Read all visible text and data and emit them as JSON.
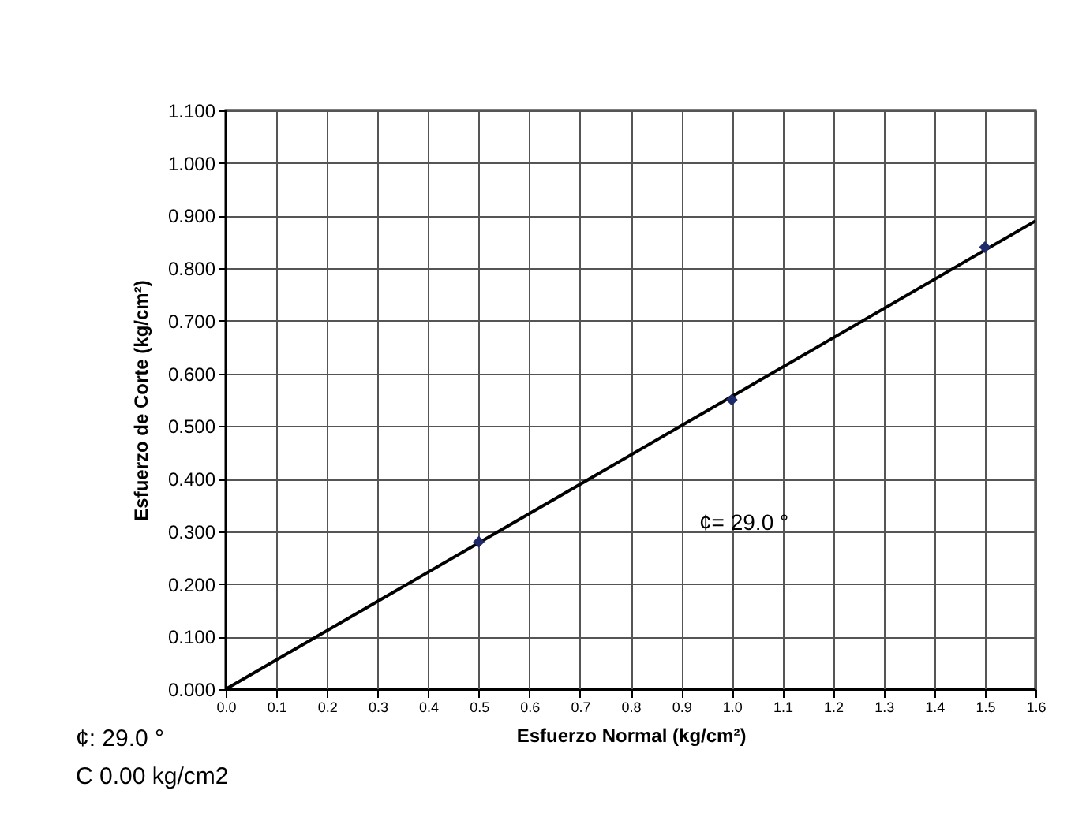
{
  "chart_data": {
    "type": "scatter",
    "xlabel": "Esfuerzo Normal (kg/cm²)",
    "ylabel": "Esfuerzo de Corte (kg/cm²)",
    "series": [
      {
        "color": "#1f2a6b",
        "marker": "diamond",
        "x": [
          0.5,
          1.0,
          1.5
        ],
        "values": [
          0.28,
          0.55,
          0.84
        ]
      },
      {
        "type": "line",
        "color": "#000000",
        "marker": "none",
        "line_style": "solid",
        "x": [
          0.0,
          1.6
        ],
        "values": [
          0.0,
          0.89
        ]
      }
    ],
    "xlim": [
      0,
      1.6
    ],
    "xticks": [
      {
        "value": 0,
        "label": "0.0"
      },
      0.1,
      0.2,
      0.3,
      0.4,
      0.5,
      0.6,
      0.7,
      0.8,
      0.9,
      {
        "value": 1,
        "label": "1.0"
      },
      1.1,
      1.2,
      1.3,
      1.4,
      1.5,
      1.6
    ],
    "ylim": [
      0,
      1.1
    ],
    "yticks": [
      {
        "value": 0,
        "label": "0.000"
      },
      {
        "value": 0.1,
        "label": "0.100"
      },
      {
        "value": 0.2,
        "label": "0.200"
      },
      {
        "value": 0.3,
        "label": "0.300"
      },
      {
        "value": 0.4,
        "label": "0.400"
      },
      {
        "value": 0.5,
        "label": "0.500"
      },
      {
        "value": 0.6,
        "label": "0.600"
      },
      {
        "value": 0.7,
        "label": "0.700"
      },
      {
        "value": 0.8,
        "label": "0.800"
      },
      {
        "value": 0.9,
        "label": "0.900"
      },
      {
        "value": 1.0,
        "label": "1.000"
      },
      {
        "value": 1.1,
        "label": "1.100"
      }
    ],
    "grid": true,
    "annotations": [
      "¢= 29.0  °",
      "¢:  29.0  °",
      "C  0.00  kg/cm2"
    ]
  }
}
